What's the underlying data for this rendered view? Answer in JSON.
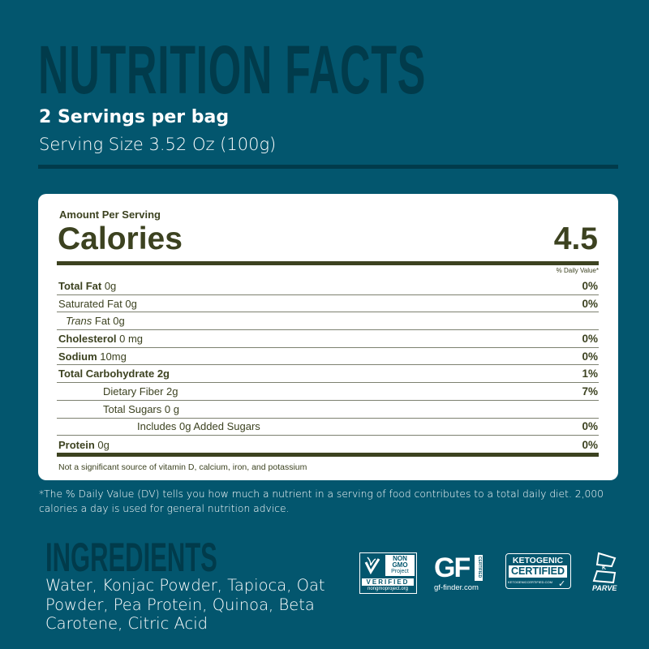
{
  "header": {
    "title": "NUTRITION FACTS",
    "servings": "2 Servings per bag",
    "serving_size": "Serving Size 3.52 Oz (100g)"
  },
  "label": {
    "amount_per_serving": "Amount Per Serving",
    "calories_label": "Calories",
    "calories_value": "4.5",
    "dv_header": "% Daily Value*",
    "rows": [
      {
        "bold": "Total Fat",
        "rest": " 0g",
        "dv": "0%",
        "indent": 0
      },
      {
        "bold": "",
        "rest": "Saturated Fat 0g",
        "dv": "0%",
        "indent": 0
      },
      {
        "italic": "Trans",
        "rest": " Fat 0g",
        "dv": "",
        "indent": 1
      },
      {
        "bold": "Cholesterol",
        "rest": " 0 mg",
        "dv": "0%",
        "indent": 0
      },
      {
        "bold": "Sodium",
        "rest": " 10mg",
        "dv": "0%",
        "indent": 0
      },
      {
        "bold": "Total Carbohydrate 2g",
        "rest": "",
        "dv": "1%",
        "indent": 0
      },
      {
        "bold": "",
        "rest": "Dietary Fiber 2g",
        "dv": "7%",
        "indent": 2
      },
      {
        "bold": "",
        "rest": "Total Sugars 0 g",
        "dv": "",
        "indent": 2
      },
      {
        "bold": "",
        "rest": "Includes 0g Added Sugars",
        "dv": "0%",
        "indent": 3
      },
      {
        "bold": "Protein",
        "rest": " 0g",
        "dv": "0%",
        "indent": 0
      }
    ],
    "footnote": "Not a significant source of vitamin D, calcium, iron, and potassium"
  },
  "dv_note": "*The % Daily Value (DV) tells you how much a nutrient in a serving of food contributes to a total daily diet. 2,000 calories a day is used for general nutrition advice.",
  "ingredients": {
    "title": "INGREDIENTS",
    "text": "Water, Konjac Powder, Tapioca, Oat Powder, Pea Protein, Quinoa, Beta Carotene, Citric Acid"
  },
  "certifications": {
    "nongmo": {
      "line1": "NON",
      "line2": "GMO",
      "line3": "Project",
      "verified": "VERIFIED",
      "url": "nongmoproject.org"
    },
    "gf": {
      "mark": "GF",
      "certified": "CERTIFIED",
      "url": "gf-finder.com"
    },
    "keto": {
      "line1": "KETOGENIC",
      "line2": "CERTIFIED",
      "url": "KETOGENICCERTIFIED.COM"
    },
    "kosher": {
      "mark": "K",
      "label": "PARVE"
    }
  },
  "colors": {
    "background": "#03566e",
    "heading": "#013b4b",
    "label_text": "#3c4220"
  }
}
